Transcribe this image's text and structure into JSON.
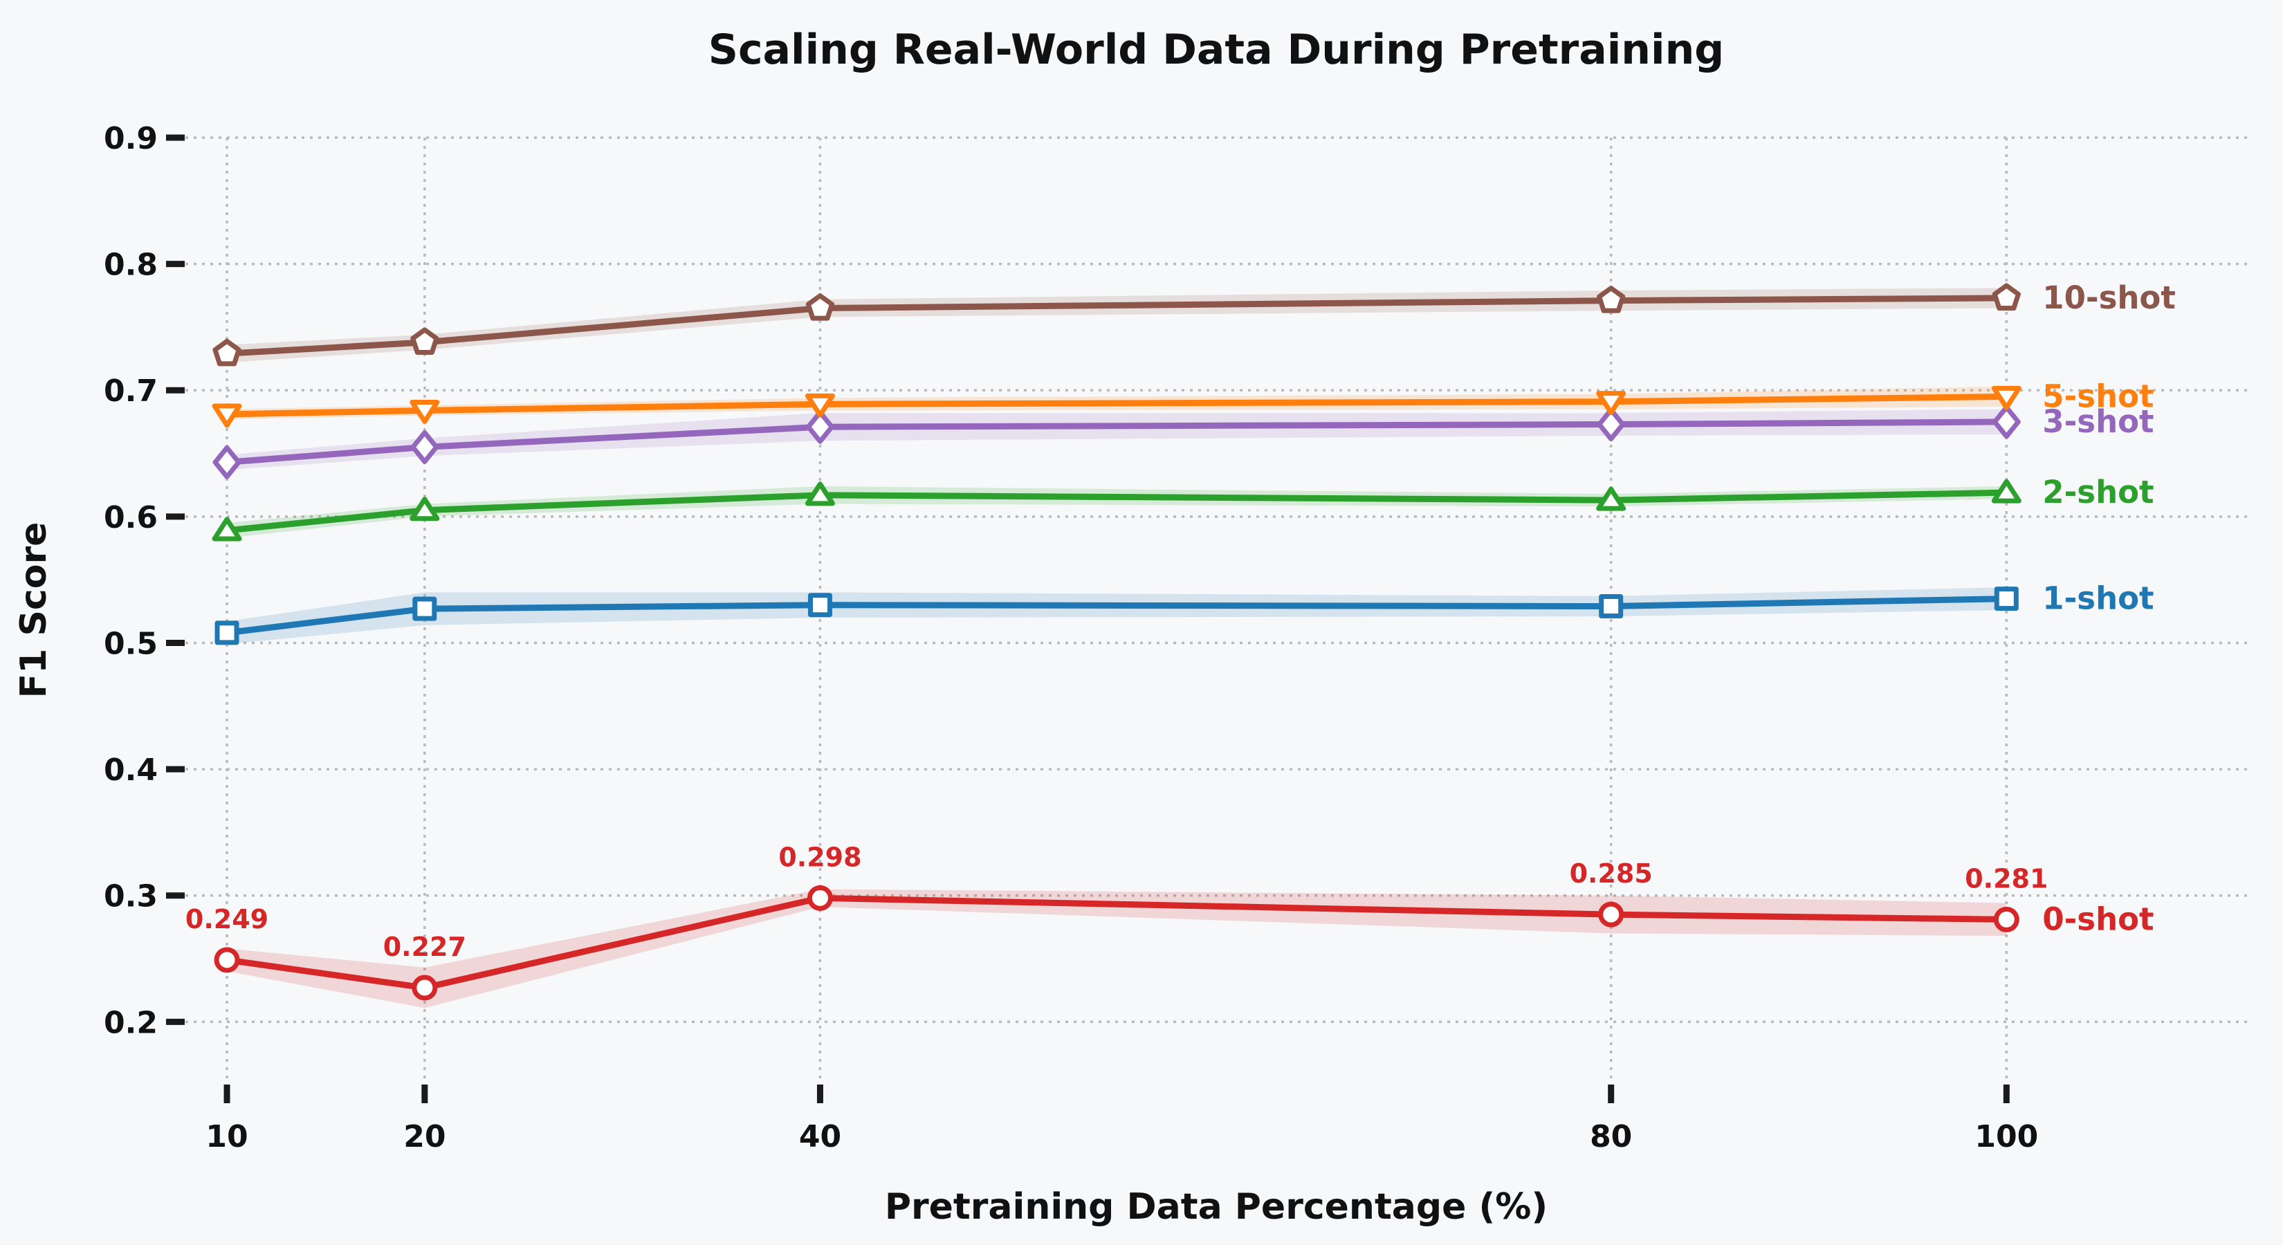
{
  "figure": {
    "background_color": "#f7f8fa",
    "grid_color": "#b9b9b9",
    "tick_color": "#1a1a1a",
    "text_color": "#111111"
  },
  "chart_data": {
    "type": "line",
    "title": "Scaling Real-World Data During Pretraining",
    "xlabel": "Pretraining Data Percentage (%)",
    "ylabel": "F1 Score",
    "x": [
      10,
      20,
      40,
      80,
      100
    ],
    "x_tick_labels": [
      "10",
      "20",
      "40",
      "80",
      "100"
    ],
    "y_ticks": [
      0.2,
      0.3,
      0.4,
      0.5,
      0.6,
      0.7,
      0.8,
      0.9
    ],
    "y_tick_labels": [
      "0.2",
      "0.3",
      "0.4",
      "0.5",
      "0.6",
      "0.7",
      "0.8",
      "0.9"
    ],
    "xlim": [
      7.9,
      112.2
    ],
    "ylim": [
      0.152,
      0.9
    ],
    "grid": true,
    "grid_style": "dotted",
    "legend_position": "end-of-line-labels",
    "series": [
      {
        "name": "0-shot",
        "color": "#d62728",
        "marker": "circle",
        "values": [
          0.249,
          0.227,
          0.298,
          0.285,
          0.281
        ],
        "band_halfwidth": [
          0.009,
          0.016,
          0.007,
          0.015,
          0.013
        ],
        "point_labels": [
          "0.249",
          "0.227",
          "0.298",
          "0.285",
          "0.281"
        ]
      },
      {
        "name": "1-shot",
        "color": "#1f77b4",
        "marker": "square",
        "values": [
          0.508,
          0.527,
          0.53,
          0.529,
          0.535
        ],
        "band_halfwidth": [
          0.009,
          0.013,
          0.01,
          0.008,
          0.009
        ],
        "point_labels": null
      },
      {
        "name": "2-shot",
        "color": "#2ca02c",
        "marker": "triangle-up",
        "values": [
          0.589,
          0.605,
          0.617,
          0.613,
          0.619
        ],
        "band_halfwidth": [
          0.006,
          0.005,
          0.007,
          0.005,
          0.005
        ],
        "point_labels": null
      },
      {
        "name": "3-shot",
        "color": "#9467bd",
        "marker": "diamond",
        "values": [
          0.643,
          0.655,
          0.671,
          0.673,
          0.675
        ],
        "band_halfwidth": [
          0.006,
          0.007,
          0.011,
          0.009,
          0.01
        ],
        "point_labels": null
      },
      {
        "name": "5-shot",
        "color": "#ff7f0e",
        "marker": "triangle-down",
        "values": [
          0.681,
          0.684,
          0.689,
          0.691,
          0.695
        ],
        "band_halfwidth": [
          0.004,
          0.004,
          0.005,
          0.006,
          0.008
        ],
        "point_labels": null
      },
      {
        "name": "10-shot",
        "color": "#8c564b",
        "marker": "pentagon",
        "values": [
          0.729,
          0.738,
          0.765,
          0.771,
          0.773
        ],
        "band_halfwidth": [
          0.007,
          0.006,
          0.007,
          0.008,
          0.008
        ],
        "point_labels": null
      }
    ]
  }
}
